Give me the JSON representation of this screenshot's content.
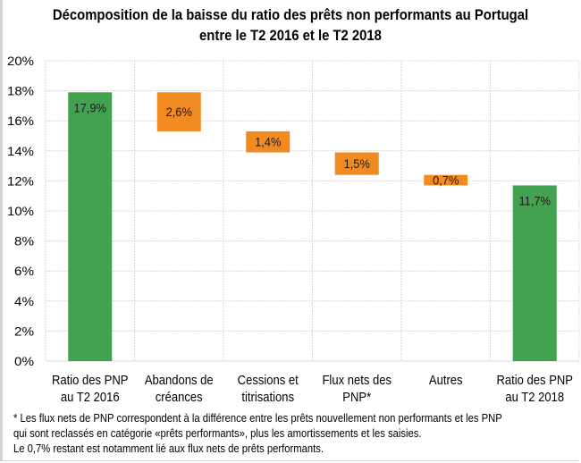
{
  "chart_data": {
    "type": "bar",
    "subtype": "waterfall",
    "title": "Décomposition de la baisse du ratio des prêts non performants au Portugal entre le T2 2016 et le T2 2018",
    "title_lines": [
      "Décomposition de la baisse du ratio des prêts non performants au Portugal",
      "entre le T2 2016 et le T2 2018"
    ],
    "categories": [
      [
        "Ratio des PNP",
        "au T2 2016"
      ],
      [
        "Abandons de",
        "créances"
      ],
      [
        "Cessions et",
        "titrisations"
      ],
      [
        "Flux nets des",
        "PNP*"
      ],
      [
        "Autres"
      ],
      [
        "Ratio des PNP",
        "au T2 2018"
      ]
    ],
    "bars": [
      {
        "bottom": 0,
        "top": 17.9,
        "label": "17,9%",
        "kind": "total"
      },
      {
        "bottom": 15.3,
        "top": 17.9,
        "label": "2,6%",
        "kind": "decrease"
      },
      {
        "bottom": 13.9,
        "top": 15.3,
        "label": "1,4%",
        "kind": "decrease"
      },
      {
        "bottom": 12.4,
        "top": 13.9,
        "label": "1,5%",
        "kind": "decrease"
      },
      {
        "bottom": 11.7,
        "top": 12.4,
        "label": "0,7%",
        "kind": "decrease"
      },
      {
        "bottom": 0,
        "top": 11.7,
        "label": "11,7%",
        "kind": "total"
      }
    ],
    "values": [
      17.9,
      -2.6,
      -1.4,
      -1.5,
      -0.7,
      11.7
    ],
    "ylim": [
      0,
      20
    ],
    "yticks": [
      "0%",
      "2%",
      "4%",
      "6%",
      "8%",
      "10%",
      "12%",
      "14%",
      "16%",
      "18%",
      "20%"
    ],
    "ytick_values": [
      0,
      2,
      4,
      6,
      8,
      10,
      12,
      14,
      16,
      18,
      20
    ],
    "xlabel": "",
    "ylabel": "",
    "grid": true,
    "colors": {
      "total": "#43a250",
      "decrease": "#f28a22",
      "grid": "#d9d9d9"
    }
  },
  "footnote": [
    "* Les flux nets de PNP correspondent à la différence entre les prêts nouvellement non performants et les PNP",
    "qui sont reclassés en catégorie «prêts performants»,  plus les amortissements et les saisies.",
    "Le 0,7% restant est notamment lié aux flux nets de prêts performants."
  ]
}
